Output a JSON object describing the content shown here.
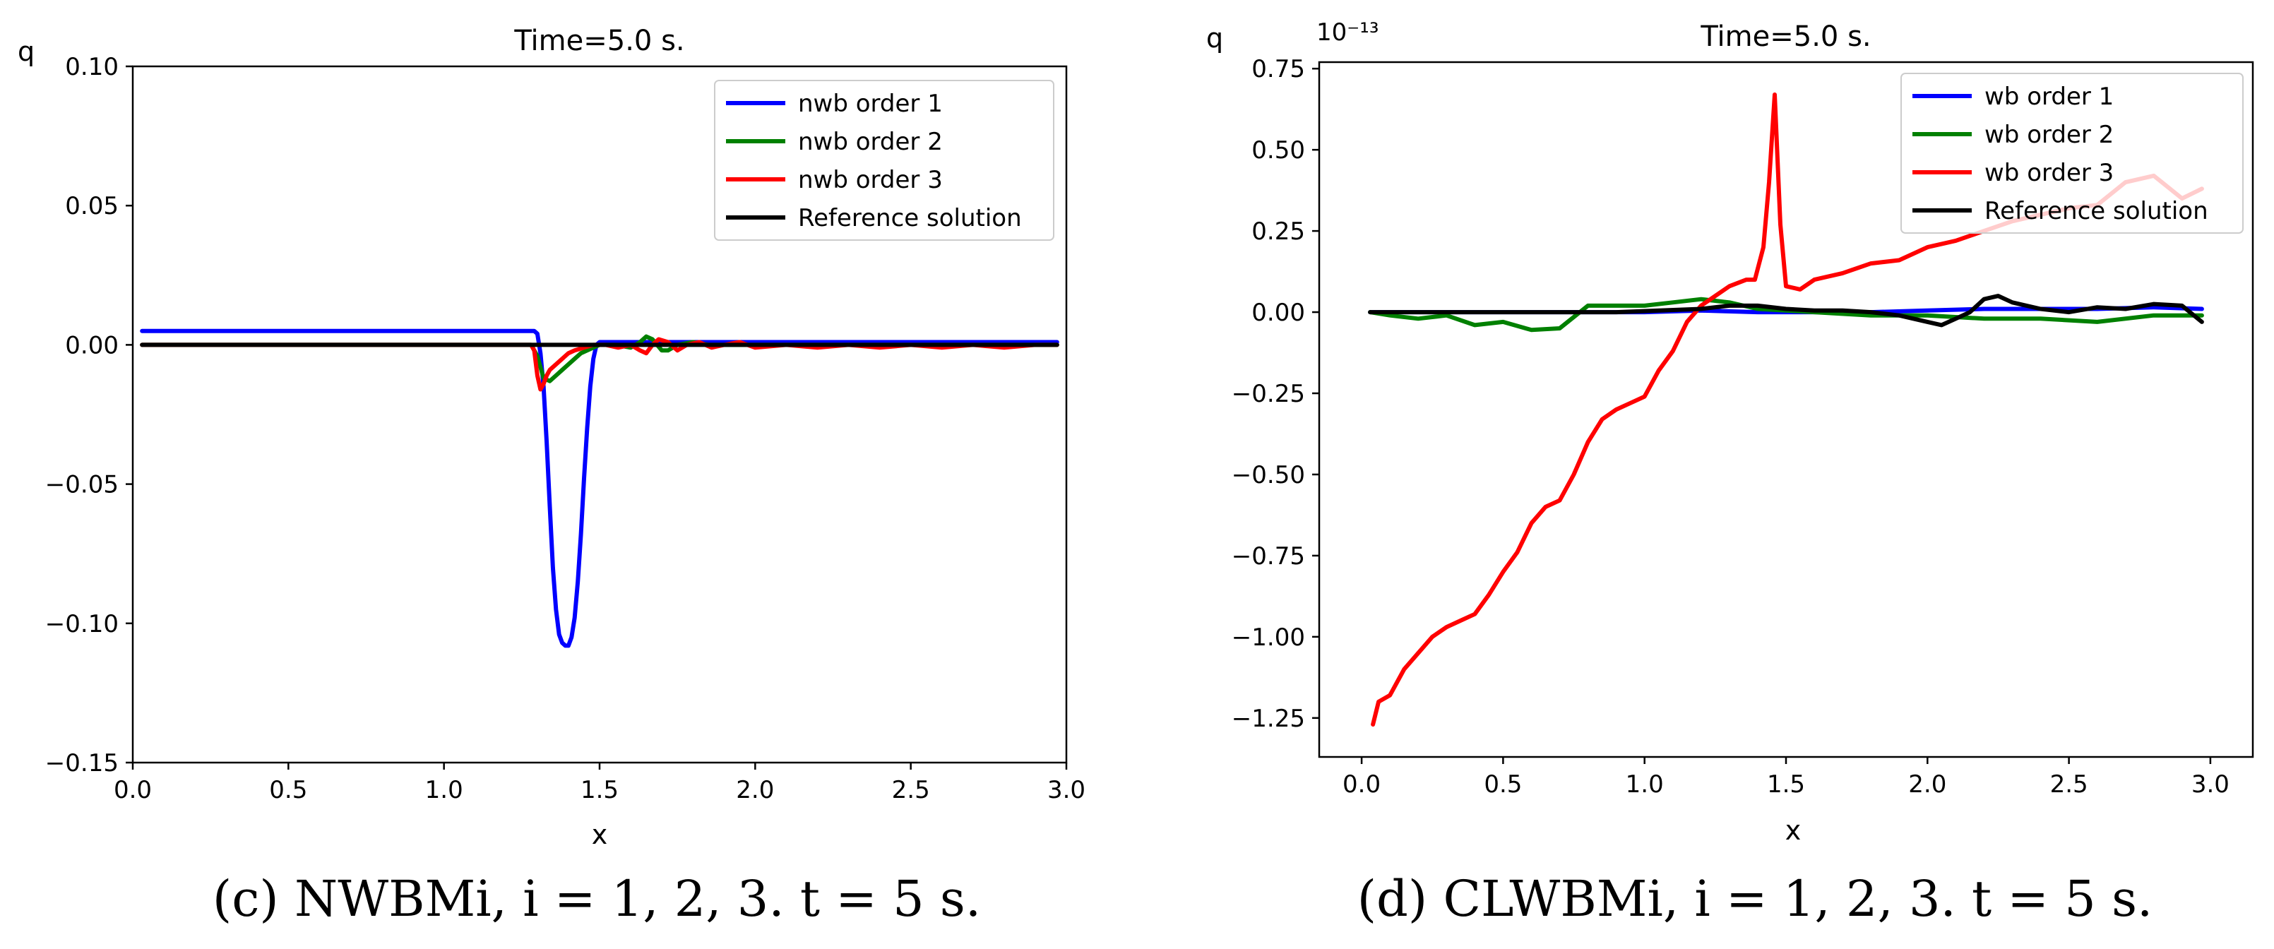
{
  "figure": {
    "panels": [
      {
        "id": "c",
        "caption": {
          "label": "(c)",
          "text": "NWBMi, i = 1, 2, 3. t = 5 s."
        }
      },
      {
        "id": "d",
        "caption": {
          "label": "(d)",
          "text": "CLWBMi, i = 1, 2, 3. t = 5 s."
        }
      }
    ]
  },
  "chart_data": [
    {
      "type": "line",
      "title": "Time=5.0 s.",
      "xlabel": "x",
      "ylabel": "q",
      "exponent_label": "",
      "xlim": [
        0.0,
        3.0
      ],
      "ylim": [
        -0.15,
        0.1
      ],
      "xticks": [
        0.0,
        0.5,
        1.0,
        1.5,
        2.0,
        2.5,
        3.0
      ],
      "xtick_labels": [
        "0.0",
        "0.5",
        "1.0",
        "1.5",
        "2.0",
        "2.5",
        "3.0"
      ],
      "yticks": [
        -0.15,
        -0.1,
        -0.05,
        0.0,
        0.05,
        0.1
      ],
      "ytick_labels": [
        "−0.15",
        "−0.10",
        "−0.05",
        "0.00",
        "0.05",
        "0.10"
      ],
      "legend_position": "upper-right",
      "series": [
        {
          "name": "nwb order 1",
          "color": "#0000ff",
          "x": [
            0.03,
            1.29,
            1.3,
            1.31,
            1.32,
            1.33,
            1.34,
            1.35,
            1.36,
            1.37,
            1.38,
            1.39,
            1.4,
            1.41,
            1.42,
            1.43,
            1.44,
            1.45,
            1.46,
            1.47,
            1.48,
            1.49,
            1.5,
            1.51,
            1.52,
            1.55,
            2.97
          ],
          "y": [
            0.005,
            0.005,
            0.004,
            -0.003,
            -0.015,
            -0.035,
            -0.058,
            -0.08,
            -0.095,
            -0.104,
            -0.107,
            -0.108,
            -0.108,
            -0.105,
            -0.098,
            -0.085,
            -0.068,
            -0.048,
            -0.03,
            -0.015,
            -0.005,
            0.0,
            0.001,
            0.001,
            0.001,
            0.001,
            0.001
          ]
        },
        {
          "name": "nwb order 2",
          "color": "#008000",
          "x": [
            0.03,
            1.28,
            1.3,
            1.32,
            1.34,
            1.36,
            1.38,
            1.4,
            1.42,
            1.44,
            1.46,
            1.48,
            1.5,
            1.55,
            1.6,
            1.63,
            1.65,
            1.67,
            1.7,
            1.72,
            1.75,
            1.8,
            1.85,
            1.9,
            2.0,
            2.2,
            2.5,
            2.8,
            2.97
          ],
          "y": [
            0.0,
            0.0,
            -0.004,
            -0.012,
            -0.013,
            -0.011,
            -0.009,
            -0.007,
            -0.005,
            -0.003,
            -0.002,
            -0.001,
            0.0,
            0.0,
            -0.001,
            0.001,
            0.003,
            0.002,
            -0.002,
            -0.002,
            0.0,
            0.001,
            0.0,
            0.0,
            0.0,
            0.0,
            0.0,
            0.0,
            0.0
          ]
        },
        {
          "name": "nwb order 3",
          "color": "#ff0000",
          "x": [
            0.03,
            1.28,
            1.29,
            1.3,
            1.31,
            1.32,
            1.33,
            1.34,
            1.36,
            1.38,
            1.4,
            1.42,
            1.45,
            1.48,
            1.52,
            1.56,
            1.6,
            1.63,
            1.65,
            1.67,
            1.69,
            1.72,
            1.75,
            1.78,
            1.82,
            1.86,
            1.9,
            1.95,
            2.0,
            2.1,
            2.2,
            2.3,
            2.4,
            2.5,
            2.6,
            2.7,
            2.8,
            2.9,
            2.97
          ],
          "y": [
            0.0,
            0.0,
            -0.002,
            -0.011,
            -0.016,
            -0.014,
            -0.011,
            -0.009,
            -0.007,
            -0.005,
            -0.003,
            -0.002,
            -0.001,
            0.0,
            0.0,
            -0.001,
            0.0,
            -0.002,
            -0.003,
            0.0,
            0.002,
            0.001,
            -0.002,
            0.0,
            0.001,
            -0.001,
            0.0,
            0.001,
            -0.001,
            0.0,
            -0.001,
            0.0,
            -0.001,
            0.0,
            -0.001,
            0.0,
            -0.001,
            0.0,
            0.0
          ]
        },
        {
          "name": "Reference solution",
          "color": "#000000",
          "x": [
            0.03,
            2.97
          ],
          "y": [
            0.0,
            0.0
          ]
        }
      ]
    },
    {
      "type": "line",
      "title": "Time=5.0 s.",
      "xlabel": "x",
      "ylabel": "q",
      "exponent_label": "10⁻¹³",
      "xlim": [
        -0.15,
        3.15
      ],
      "ylim": [
        -1.37,
        0.77
      ],
      "xticks": [
        0.0,
        0.5,
        1.0,
        1.5,
        2.0,
        2.5,
        3.0
      ],
      "xtick_labels": [
        "0.0",
        "0.5",
        "1.0",
        "1.5",
        "2.0",
        "2.5",
        "3.0"
      ],
      "yticks": [
        -1.25,
        -1.0,
        -0.75,
        -0.5,
        -0.25,
        0.0,
        0.25,
        0.5,
        0.75
      ],
      "ytick_labels": [
        "−1.25",
        "−1.00",
        "−0.75",
        "−0.50",
        "−0.25",
        "0.00",
        "0.25",
        "0.50",
        "0.75"
      ],
      "legend_position": "upper-right",
      "series": [
        {
          "name": "wb order 1",
          "color": "#0000ff",
          "x": [
            0.03,
            0.2,
            0.4,
            0.6,
            0.8,
            1.0,
            1.2,
            1.4,
            1.6,
            1.8,
            2.0,
            2.2,
            2.4,
            2.6,
            2.8,
            2.97
          ],
          "y": [
            0.0,
            0.0,
            0.0,
            0.0,
            0.0,
            0.0,
            0.005,
            0.0,
            0.0,
            0.0,
            0.005,
            0.01,
            0.01,
            0.01,
            0.015,
            0.01
          ]
        },
        {
          "name": "wb order 2",
          "color": "#008000",
          "x": [
            0.03,
            0.1,
            0.2,
            0.3,
            0.4,
            0.5,
            0.6,
            0.7,
            0.8,
            0.9,
            1.0,
            1.1,
            1.2,
            1.3,
            1.4,
            1.5,
            1.6,
            1.8,
            2.0,
            2.2,
            2.4,
            2.6,
            2.8,
            2.97
          ],
          "y": [
            0.0,
            -0.01,
            -0.02,
            -0.01,
            -0.04,
            -0.03,
            -0.055,
            -0.05,
            0.02,
            0.02,
            0.02,
            0.03,
            0.04,
            0.03,
            0.01,
            0.005,
            0.0,
            -0.01,
            -0.01,
            -0.02,
            -0.02,
            -0.03,
            -0.01,
            -0.01
          ]
        },
        {
          "name": "wb order 3",
          "color": "#ff0000",
          "x": [
            0.04,
            0.06,
            0.1,
            0.15,
            0.2,
            0.25,
            0.3,
            0.35,
            0.4,
            0.45,
            0.5,
            0.55,
            0.6,
            0.65,
            0.7,
            0.75,
            0.8,
            0.85,
            0.9,
            0.95,
            1.0,
            1.05,
            1.1,
            1.15,
            1.2,
            1.25,
            1.3,
            1.33,
            1.36,
            1.39,
            1.42,
            1.44,
            1.46,
            1.48,
            1.5,
            1.55,
            1.6,
            1.7,
            1.8,
            1.9,
            2.0,
            2.1,
            2.2,
            2.3,
            2.4,
            2.5,
            2.6,
            2.7,
            2.8,
            2.9,
            2.97
          ],
          "y": [
            -1.27,
            -1.2,
            -1.18,
            -1.1,
            -1.05,
            -1.0,
            -0.97,
            -0.95,
            -0.93,
            -0.87,
            -0.8,
            -0.74,
            -0.65,
            -0.6,
            -0.58,
            -0.5,
            -0.4,
            -0.33,
            -0.3,
            -0.28,
            -0.26,
            -0.18,
            -0.12,
            -0.03,
            0.02,
            0.05,
            0.08,
            0.09,
            0.1,
            0.1,
            0.2,
            0.4,
            0.67,
            0.27,
            0.08,
            0.07,
            0.1,
            0.12,
            0.15,
            0.16,
            0.2,
            0.22,
            0.25,
            0.28,
            0.3,
            0.32,
            0.33,
            0.4,
            0.42,
            0.35,
            0.38
          ]
        },
        {
          "name": "Reference solution",
          "color": "#000000",
          "x": [
            0.03,
            0.3,
            0.6,
            0.9,
            1.2,
            1.3,
            1.4,
            1.5,
            1.6,
            1.7,
            1.8,
            1.9,
            2.0,
            2.05,
            2.1,
            2.15,
            2.2,
            2.25,
            2.3,
            2.4,
            2.5,
            2.6,
            2.7,
            2.8,
            2.9,
            2.97
          ],
          "y": [
            0.0,
            0.0,
            0.0,
            0.0,
            0.01,
            0.02,
            0.02,
            0.01,
            0.005,
            0.005,
            0.0,
            -0.01,
            -0.03,
            -0.04,
            -0.02,
            0.0,
            0.04,
            0.05,
            0.03,
            0.01,
            0.0,
            0.015,
            0.01,
            0.025,
            0.02,
            -0.03
          ]
        }
      ]
    }
  ]
}
